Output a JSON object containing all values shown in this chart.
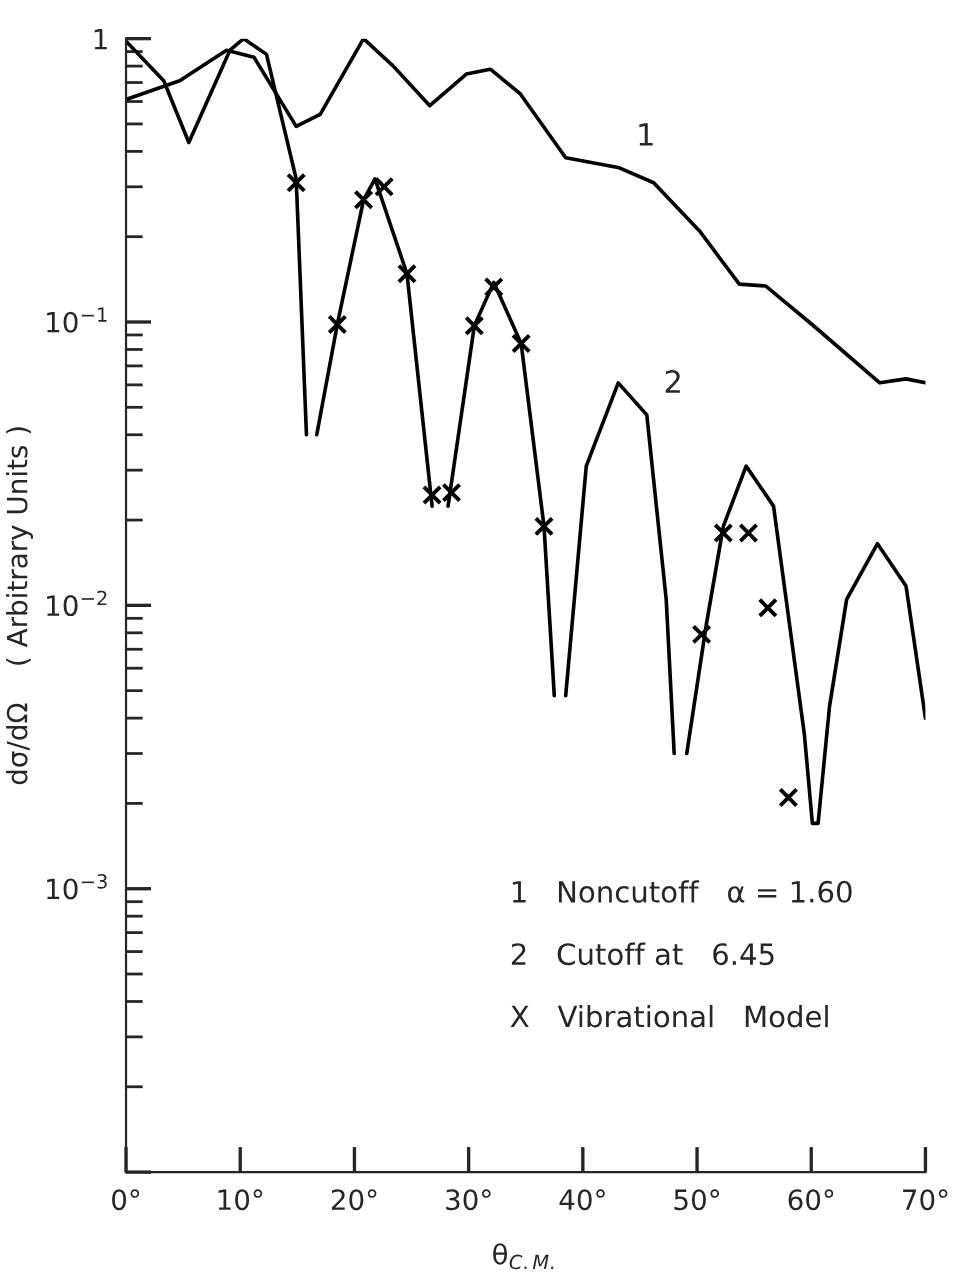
{
  "chart_data": {
    "type": "line",
    "xlabel": "θ$_{C.M.}$",
    "ylabel": "dσ/dΩ    ( Arbitrary Units )",
    "log": "y",
    "xlim": [
      0,
      70
    ],
    "ylim": [
      0.0001,
      1
    ],
    "xticks": [
      {
        "value": 0,
        "label": "0°"
      },
      {
        "value": 10,
        "label": "10°"
      },
      {
        "value": 20,
        "label": "20°"
      },
      {
        "value": 30,
        "label": "30°"
      },
      {
        "value": 40,
        "label": "40°"
      },
      {
        "value": 50,
        "label": "50°"
      },
      {
        "value": 60,
        "label": "60°"
      },
      {
        "value": 70,
        "label": "70°"
      }
    ],
    "yticks": [
      {
        "value": 0.0001,
        "label": null
      },
      {
        "value": 0.001,
        "label": "10$^{−3}$"
      },
      {
        "value": 0.01,
        "label": "10$^{−2}$"
      },
      {
        "value": 0.1,
        "label": "10$^{−1}$"
      },
      {
        "value": 1,
        "label": "1"
      }
    ],
    "series": [
      {
        "name": "1",
        "color": "#000000",
        "x": [
          0,
          4.7,
          8.8,
          11.2,
          14.9,
          17,
          20.8,
          23.4,
          26.6,
          29.8,
          31.9,
          34.5,
          38.5,
          43.2,
          46.2,
          50.2,
          53.7,
          56,
          60.2,
          66,
          68.3,
          70
        ],
        "values": [
          0.61,
          0.71,
          0.91,
          0.86,
          0.49,
          0.54,
          1.0,
          0.8,
          0.58,
          0.75,
          0.78,
          0.64,
          0.38,
          0.35,
          0.31,
          0.21,
          0.136,
          0.134,
          0.097,
          0.061,
          0.063,
          0.061
        ]
      },
      {
        "name": "2",
        "color": "#000000",
        "x": [
          0,
          3.3,
          5.5,
          7.1,
          9.1,
          10.3,
          12.3,
          14.9,
          15.8,
          16.2,
          16.7,
          18.5,
          20.8,
          21.8,
          24.6,
          26.8,
          27.5,
          28.2,
          30.5,
          32.2,
          34.6,
          36.6,
          37.5,
          38.0,
          38.5,
          40.3,
          43.1,
          45.6,
          47.3,
          48.0,
          48.5,
          49.1,
          50.8,
          52.3,
          54.3,
          56.7,
          57.8,
          59.4,
          60.1,
          60.6,
          61.6,
          63.1,
          65.8,
          68.3,
          70
        ],
        "values": [
          0.98,
          0.71,
          0.43,
          0.6,
          0.91,
          1.0,
          0.88,
          0.32,
          0.04,
          null,
          0.04,
          0.098,
          0.27,
          0.32,
          0.148,
          0.0224,
          null,
          0.0224,
          0.097,
          0.138,
          0.084,
          0.019,
          0.0048,
          null,
          0.0048,
          0.031,
          0.061,
          0.047,
          0.0105,
          0.003,
          null,
          0.003,
          0.0085,
          0.019,
          0.031,
          0.0224,
          0.0105,
          0.0035,
          0.0017,
          0.0017,
          0.0044,
          0.0105,
          0.0165,
          0.0117,
          0.004
        ]
      },
      {
        "type": "scatter",
        "color": "#000000",
        "marker": "cross",
        "x": [
          14.9,
          18.5,
          20.8,
          22.6,
          24.6,
          26.8,
          28.5,
          30.5,
          32.2,
          34.6,
          36.6,
          50.4,
          52.3,
          54.5,
          56.2,
          58.0
        ],
        "values": [
          0.31,
          0.098,
          0.27,
          0.3,
          0.148,
          0.0245,
          0.025,
          0.097,
          0.133,
          0.084,
          0.019,
          0.0079,
          0.018,
          0.018,
          0.0098,
          0.0021
        ]
      }
    ],
    "annotations": [
      "1   Noncutoff   α = 1.60",
      "2   Cutoff at   6.45",
      "X   Vibrational   Model"
    ]
  }
}
